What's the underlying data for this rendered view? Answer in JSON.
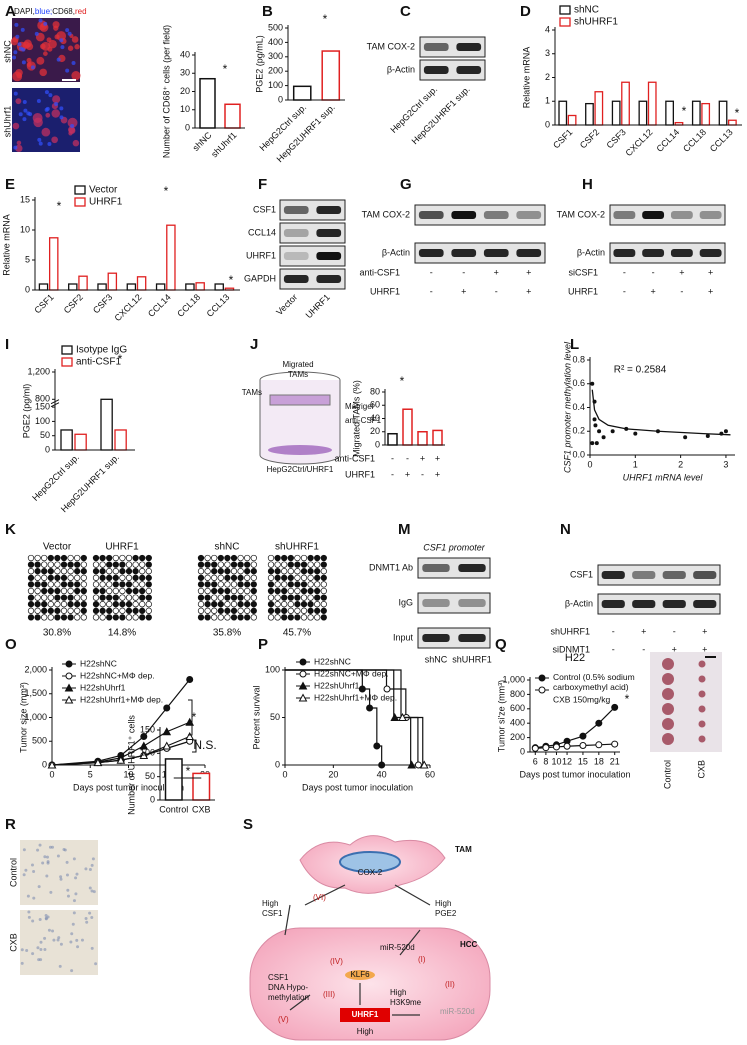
{
  "panel_labels": [
    "A",
    "B",
    "C",
    "D",
    "E",
    "F",
    "G",
    "H",
    "I",
    "J",
    "K",
    "L",
    "M",
    "N",
    "O",
    "P",
    "Q",
    "R",
    "S"
  ],
  "micrograph_A": {
    "legend": [
      "DAPI, ",
      "blue;",
      " CD68, ",
      "red"
    ],
    "rows": [
      "shNC",
      "shUhrf1"
    ]
  },
  "micrograph_R": {
    "rows": [
      "Control",
      "CXB"
    ]
  },
  "blots": {
    "C": {
      "rows": [
        "TAM COX-2",
        "β-Actin"
      ],
      "lanes": [
        "HepG2Ctrl sup.",
        "HepG2UHRF1 sup."
      ]
    },
    "F": {
      "rows": [
        "CSF1",
        "CCL14",
        "UHRF1",
        "GAPDH"
      ],
      "lanes": [
        "Vector",
        "UHRF1"
      ]
    },
    "G": {
      "rows": [
        "TAM COX-2",
        "β-Actin"
      ],
      "conditions": [
        {
          "name": "anti-CSF1",
          "signs": [
            "-",
            "-",
            "+",
            "+"
          ]
        },
        {
          "name": "UHRF1",
          "signs": [
            "-",
            "+",
            "-",
            "+"
          ]
        }
      ]
    },
    "I": {
      "rows": [
        "TAM COX-2",
        "β-Actin"
      ],
      "conditions": [
        {
          "name": "siCSF1",
          "signs": [
            "-",
            "-",
            "+",
            "+"
          ]
        },
        {
          "name": "UHRF1",
          "signs": [
            "-",
            "+",
            "-",
            "+"
          ]
        }
      ]
    },
    "M": {
      "title": "CSF1 promoter",
      "rows": [
        "DNMT1 Ab",
        "IgG",
        "Input"
      ],
      "lanes": [
        "shNC",
        "shUHRF1"
      ]
    },
    "N": {
      "rows": [
        "CSF1",
        "β-Actin"
      ],
      "conditions": [
        {
          "name": "shUHRF1",
          "signs": [
            "-",
            "+",
            "-",
            "+"
          ]
        },
        {
          "name": "siDNMT1",
          "signs": [
            "-",
            "-",
            "+",
            "+"
          ]
        }
      ]
    }
  },
  "methylation_K": {
    "groups": [
      {
        "name": "Vector",
        "percent": "30.8%"
      },
      {
        "name": "UHRF1",
        "percent": "14.8%"
      },
      {
        "name": "shNC",
        "percent": "35.8%"
      },
      {
        "name": "shUHRF1",
        "percent": "45.7%"
      }
    ]
  },
  "schematic_J": {
    "labels": [
      "TAMs",
      "Migrated",
      "TAMs",
      "Matrigel",
      "anti-CSF1",
      "HepG2Ctrl/UHRF1"
    ]
  },
  "photo_Q": {
    "labels": [
      "Control",
      "CXB"
    ]
  },
  "diagram_S": {
    "labels": [
      "TAM",
      "COX-2",
      "(VI)",
      "High",
      "CSF1",
      "High",
      "PGE2",
      "HCC",
      "miR-520d",
      "(I)",
      "(IV)",
      "KLF6",
      "(II)",
      "CSF1",
      "DNA Hypo-",
      "methylation",
      "(III)",
      "High",
      "H3K9me",
      "(V)",
      "UHRF1",
      "High",
      "miR-520d"
    ]
  },
  "chart_data": [
    {
      "type": "bar",
      "ylabel": "Number of CD68⁺ cells (per field)",
      "categories": [
        "shNC",
        "shUhrf1"
      ],
      "values": [
        27,
        13
      ],
      "colors": [
        "#111111",
        "#e02020"
      ],
      "ylim": [
        0,
        40
      ],
      "yticks": [
        0,
        10,
        20,
        30,
        40
      ],
      "annotations": [
        "*"
      ]
    },
    {
      "type": "bar",
      "ylabel": "PGE2 (pg/mL)",
      "categories": [
        "HepG2Ctrl sup.",
        "HepG2UHRF1 sup."
      ],
      "values": [
        95,
        340
      ],
      "colors": [
        "#111111",
        "#e02020"
      ],
      "ylim": [
        0,
        500
      ],
      "yticks": [
        0,
        100,
        200,
        300,
        400,
        500
      ],
      "annotations": [
        "*"
      ]
    },
    {
      "type": "bar",
      "ylabel": "Relative mRNA",
      "categories": [
        "CSF1",
        "CSF2",
        "CSF3",
        "CXCL12",
        "CCL14",
        "CCL18",
        "CCL13"
      ],
      "series": [
        {
          "name": "shNC",
          "color": "#111111",
          "values": [
            1,
            0.9,
            1,
            1,
            1,
            1,
            1
          ]
        },
        {
          "name": "shUHRF1",
          "color": "#e02020",
          "values": [
            0.4,
            1.4,
            1.8,
            1.8,
            0.1,
            0.9,
            0.2
          ]
        }
      ],
      "ylim": [
        0,
        4
      ],
      "yticks": [
        0,
        1,
        2,
        3,
        4
      ],
      "annotations": [
        "*",
        "*"
      ]
    },
    {
      "type": "bar",
      "ylabel": "Relative mRNA",
      "categories": [
        "CSF1",
        "CSF2",
        "CSF3",
        "CXCL12",
        "CCL14",
        "CCL18",
        "CCL13"
      ],
      "series": [
        {
          "name": "Vector",
          "color": "#111111",
          "values": [
            1,
            1,
            1,
            1,
            1,
            1,
            1
          ]
        },
        {
          "name": "UHRF1",
          "color": "#e02020",
          "values": [
            8.7,
            2.3,
            2.8,
            2.2,
            10.8,
            1.2,
            0.3
          ]
        }
      ],
      "ylim": [
        0,
        15
      ],
      "yticks": [
        0,
        5,
        10,
        15
      ],
      "annotations": [
        "*",
        "*",
        "*"
      ]
    },
    {
      "type": "bar",
      "ylabel": "PGE2 (pg/ml)",
      "categories": [
        "HepG2Ctrl sup.",
        "HepG2UHRF1 sup."
      ],
      "series": [
        {
          "name": "Isotype IgG",
          "color": "#111111",
          "values": [
            70,
            800
          ]
        },
        {
          "name": "anti-CSF1",
          "color": "#e02020",
          "values": [
            55,
            70
          ]
        }
      ],
      "ylim": [
        0,
        1200
      ],
      "axis_break": [
        150,
        800
      ],
      "yticks": [
        0,
        50,
        100,
        150,
        800,
        {
          "value": 1200,
          "label": "1,200"
        }
      ],
      "annotations": [
        "*"
      ]
    },
    {
      "type": "bar",
      "ylabel": "Migrated TAMs (%)",
      "values": [
        17,
        54,
        20,
        22
      ],
      "colors": [
        "#111111",
        "#e02020",
        "#e02020",
        "#e02020"
      ],
      "conditions": [
        {
          "name": "anti-CSF1",
          "signs": [
            "-",
            "-",
            "+",
            "+"
          ]
        },
        {
          "name": "UHRF1",
          "signs": [
            "-",
            "+",
            "-",
            "+"
          ]
        }
      ],
      "ylim": [
        0,
        80
      ],
      "yticks": [
        0,
        20,
        40,
        60,
        80
      ],
      "annotations": [
        "*"
      ]
    },
    {
      "type": "scatter",
      "xlabel": "UHRF1 mRNA level",
      "ylabel": "CSF1 promoter methylation level",
      "x": [
        0.05,
        0.1,
        0.1,
        0.15,
        0.2,
        0.3,
        0.5,
        0.8,
        1.0,
        1.5,
        2.1,
        2.6,
        2.9,
        3.0,
        0.05,
        0.12
      ],
      "values": [
        0.6,
        0.45,
        0.3,
        0.1,
        0.2,
        0.15,
        0.2,
        0.22,
        0.18,
        0.2,
        0.15,
        0.16,
        0.18,
        0.2,
        0.1,
        0.25
      ],
      "fit": {
        "x": [
          0.05,
          0.1,
          0.2,
          0.4,
          0.8,
          1.5,
          2.5,
          3.1
        ],
        "values": [
          0.55,
          0.38,
          0.3,
          0.25,
          0.22,
          0.2,
          0.18,
          0.17
        ]
      },
      "xlim": [
        0,
        3.2
      ],
      "xticks": [
        0,
        1,
        2,
        3
      ],
      "ylim": [
        0,
        0.8
      ],
      "yticks": [
        {
          "value": 0,
          "label": "0.0"
        },
        {
          "value": 0.2,
          "label": "0.2"
        },
        {
          "value": 0.4,
          "label": "0.4"
        },
        {
          "value": 0.6,
          "label": "0.6"
        },
        {
          "value": 0.8,
          "label": "0.8"
        }
      ],
      "annotations": [
        "R² = 0.2584"
      ]
    },
    {
      "type": "line",
      "xlabel": "Days post tumor inoculation",
      "ylabel": "Tumor size (mm³)",
      "x": [
        0,
        6,
        9,
        12,
        15,
        18
      ],
      "series": [
        {
          "name": "H22shNC",
          "marker": "circle",
          "color": "#111111",
          "values": [
            0,
            80,
            200,
            600,
            1200,
            1800
          ]
        },
        {
          "name": "H22shNC+MΦ dep.",
          "marker": "open-circle",
          "color": "#111111",
          "values": [
            0,
            50,
            100,
            200,
            350,
            500
          ]
        },
        {
          "name": "H22shUhrf1",
          "marker": "triangle",
          "color": "#111111",
          "values": [
            0,
            60,
            150,
            400,
            700,
            900
          ]
        },
        {
          "name": "H22shUhrf1+MΦ dep.",
          "marker": "open-triangle",
          "color": "#111111",
          "values": [
            0,
            50,
            100,
            200,
            400,
            600
          ]
        }
      ],
      "xlim": [
        0,
        20
      ],
      "xticks": [
        0,
        5,
        10,
        15,
        20
      ],
      "ylim": [
        0,
        2000
      ],
      "yticks": [
        0,
        500,
        {
          "value": 1000,
          "label": "1,000"
        },
        {
          "value": 1500,
          "label": "1,500"
        },
        {
          "value": 2000,
          "label": "2,000"
        }
      ],
      "annotations": [
        "*",
        "N.S."
      ]
    },
    {
      "type": "step",
      "xlabel": "Days post tumor inoculation",
      "ylabel": "Percent survival",
      "series": [
        {
          "name": "H22shNC",
          "marker": "circle",
          "color": "#111111",
          "x": [
            0,
            32,
            35,
            38,
            40
          ],
          "values": [
            100,
            80,
            60,
            20,
            0
          ]
        },
        {
          "name": "H22shNC+MΦ dep.",
          "marker": "open-circle",
          "color": "#111111",
          "x": [
            0,
            42,
            50,
            55
          ],
          "values": [
            100,
            80,
            50,
            0
          ]
        },
        {
          "name": "H22shUhrf1",
          "marker": "triangle",
          "color": "#111111",
          "x": [
            0,
            45,
            52
          ],
          "values": [
            100,
            50,
            0
          ]
        },
        {
          "name": "H22shUhrf1+MΦ dep.",
          "marker": "open-triangle",
          "color": "#111111",
          "x": [
            0,
            48,
            57
          ],
          "values": [
            100,
            50,
            0
          ]
        }
      ],
      "xlim": [
        0,
        60
      ],
      "xticks": [
        0,
        20,
        40,
        60
      ],
      "ylim": [
        0,
        100
      ],
      "yticks": [
        0,
        50,
        100
      ]
    },
    {
      "type": "line",
      "title": "H22",
      "xlabel": "Days post tumor inoculation",
      "ylabel": "Tumor si'ze (mm³)",
      "x": [
        6,
        8,
        10,
        12,
        15,
        18,
        21
      ],
      "series": [
        {
          "name": "Control (0.5% sodium carboxymethyl acid)",
          "marker": "circle",
          "color": "#111111",
          "values": [
            60,
            80,
            100,
            150,
            220,
            400,
            620
          ]
        },
        {
          "name": "CXB 150mg/kg",
          "marker": "open-circle",
          "color": "#111111",
          "values": [
            50,
            60,
            70,
            80,
            90,
            100,
            110
          ]
        }
      ],
      "xlim": [
        5,
        22
      ],
      "xticks": [
        6,
        8,
        10,
        12,
        15,
        18,
        21
      ],
      "ylim": [
        0,
        1000
      ],
      "yticks": [
        0,
        200,
        400,
        600,
        800,
        {
          "value": 1000,
          "label": "1,000"
        }
      ],
      "annotations": [
        "*"
      ]
    },
    {
      "type": "bar",
      "ylabel": "Number of UHRF1⁺ cells",
      "categories": [
        "Control",
        "CXB"
      ],
      "values": [
        88,
        57
      ],
      "colors": [
        "#111111",
        "#e02020"
      ],
      "ylim": [
        0,
        150
      ],
      "yticks": [
        0,
        50,
        100,
        150
      ],
      "annotations": [
        "*"
      ]
    }
  ]
}
